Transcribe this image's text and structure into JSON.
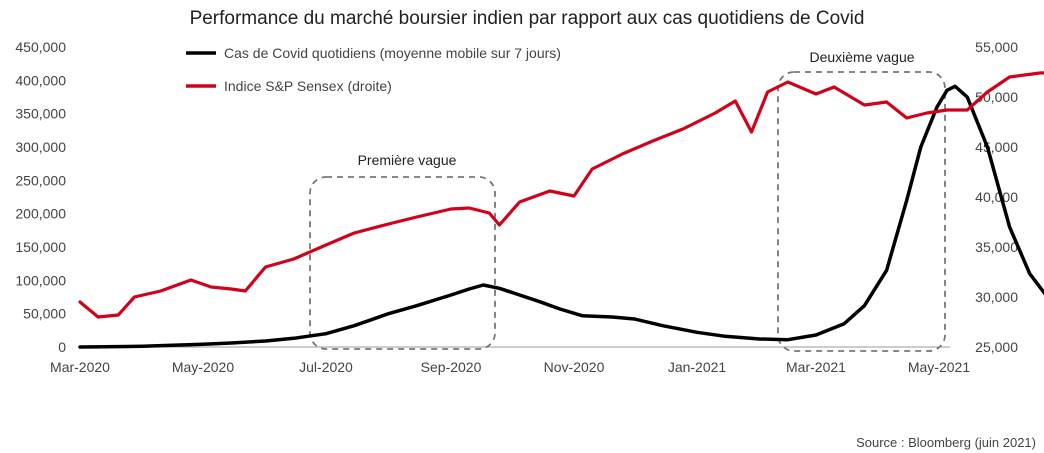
{
  "chart_data": {
    "type": "line",
    "title": "Performance du marché boursier indien par rapport aux cas quotidiens de Covid",
    "source": "Source : Bloomberg (juin 2021)",
    "x_ticks": [
      "Mar-2020",
      "May-2020",
      "Jul-2020",
      "Sep-2020",
      "Nov-2020",
      "Jan-2021",
      "Mar-2021",
      "May-2021"
    ],
    "y_left": {
      "ticks": [
        "0",
        "50,000",
        "100,000",
        "150,000",
        "200,000",
        "250,000",
        "300,000",
        "350,000",
        "400,000",
        "450,000"
      ],
      "range": [
        0,
        450000
      ]
    },
    "y_right": {
      "ticks": [
        "25,000",
        "30,000",
        "35,000",
        "40,000",
        "45,000",
        "50,000",
        "55,000"
      ],
      "range": [
        25000,
        55000
      ]
    },
    "series": [
      {
        "name": "Cas de Covid quotidiens (moyenne mobile sur 7 jours)",
        "axis": "left",
        "color": "#000000",
        "points": [
          [
            "2020-03-01",
            0
          ],
          [
            "2020-04-01",
            1000
          ],
          [
            "2020-05-01",
            4000
          ],
          [
            "2020-05-15",
            6000
          ],
          [
            "2020-06-01",
            9000
          ],
          [
            "2020-06-15",
            13000
          ],
          [
            "2020-07-01",
            20000
          ],
          [
            "2020-07-15",
            32000
          ],
          [
            "2020-08-01",
            50000
          ],
          [
            "2020-08-15",
            62000
          ],
          [
            "2020-09-01",
            78000
          ],
          [
            "2020-09-10",
            87000
          ],
          [
            "2020-09-17",
            93000
          ],
          [
            "2020-09-25",
            88000
          ],
          [
            "2020-10-05",
            78000
          ],
          [
            "2020-10-15",
            68000
          ],
          [
            "2020-10-25",
            57000
          ],
          [
            "2020-11-05",
            47000
          ],
          [
            "2020-11-20",
            45000
          ],
          [
            "2020-12-01",
            42000
          ],
          [
            "2020-12-15",
            32000
          ],
          [
            "2021-01-01",
            22000
          ],
          [
            "2021-01-15",
            16000
          ],
          [
            "2021-02-01",
            12000
          ],
          [
            "2021-02-15",
            11000
          ],
          [
            "2021-03-01",
            18000
          ],
          [
            "2021-03-15",
            35000
          ],
          [
            "2021-03-25",
            62000
          ],
          [
            "2021-04-05",
            115000
          ],
          [
            "2021-04-15",
            220000
          ],
          [
            "2021-04-22",
            300000
          ],
          [
            "2021-04-30",
            360000
          ],
          [
            "2021-05-05",
            385000
          ],
          [
            "2021-05-09",
            391000
          ],
          [
            "2021-05-15",
            375000
          ],
          [
            "2021-05-25",
            300000
          ],
          [
            "2021-06-05",
            180000
          ],
          [
            "2021-06-15",
            110000
          ],
          [
            "2021-06-25",
            70000
          ],
          [
            "2021-07-03",
            52000
          ]
        ]
      },
      {
        "name": "Indice S&P Sensex (droite)",
        "axis": "right",
        "color": "#d0021b",
        "points": [
          [
            "2020-03-01",
            29500
          ],
          [
            "2020-03-10",
            28000
          ],
          [
            "2020-03-20",
            28200
          ],
          [
            "2020-03-28",
            30000
          ],
          [
            "2020-04-10",
            30600
          ],
          [
            "2020-04-25",
            31700
          ],
          [
            "2020-05-05",
            31000
          ],
          [
            "2020-05-15",
            30800
          ],
          [
            "2020-05-22",
            30600
          ],
          [
            "2020-06-01",
            33000
          ],
          [
            "2020-06-15",
            33800
          ],
          [
            "2020-07-01",
            35200
          ],
          [
            "2020-07-15",
            36400
          ],
          [
            "2020-08-01",
            37300
          ],
          [
            "2020-08-15",
            38000
          ],
          [
            "2020-09-01",
            38800
          ],
          [
            "2020-09-10",
            38900
          ],
          [
            "2020-09-20",
            38400
          ],
          [
            "2020-09-25",
            37200
          ],
          [
            "2020-10-05",
            39500
          ],
          [
            "2020-10-20",
            40600
          ],
          [
            "2020-11-01",
            40100
          ],
          [
            "2020-11-10",
            42800
          ],
          [
            "2020-11-25",
            44300
          ],
          [
            "2020-12-10",
            45600
          ],
          [
            "2020-12-25",
            46800
          ],
          [
            "2021-01-10",
            48400
          ],
          [
            "2021-01-20",
            49600
          ],
          [
            "2021-01-28",
            46500
          ],
          [
            "2021-02-05",
            50500
          ],
          [
            "2021-02-15",
            51500
          ],
          [
            "2021-03-01",
            50300
          ],
          [
            "2021-03-10",
            51000
          ],
          [
            "2021-03-25",
            49200
          ],
          [
            "2021-04-05",
            49500
          ],
          [
            "2021-04-15",
            47900
          ],
          [
            "2021-04-25",
            48400
          ],
          [
            "2021-05-05",
            48700
          ],
          [
            "2021-05-15",
            48700
          ],
          [
            "2021-05-25",
            50500
          ],
          [
            "2021-06-05",
            52000
          ],
          [
            "2021-06-20",
            52400
          ],
          [
            "2021-07-03",
            52500
          ]
        ]
      }
    ],
    "annotations": [
      {
        "label": "Première vague",
        "style": "dashed-box"
      },
      {
        "label": "Deuxième vague",
        "style": "dashed-box"
      }
    ],
    "grid": false,
    "legend_placement": "top-left"
  }
}
